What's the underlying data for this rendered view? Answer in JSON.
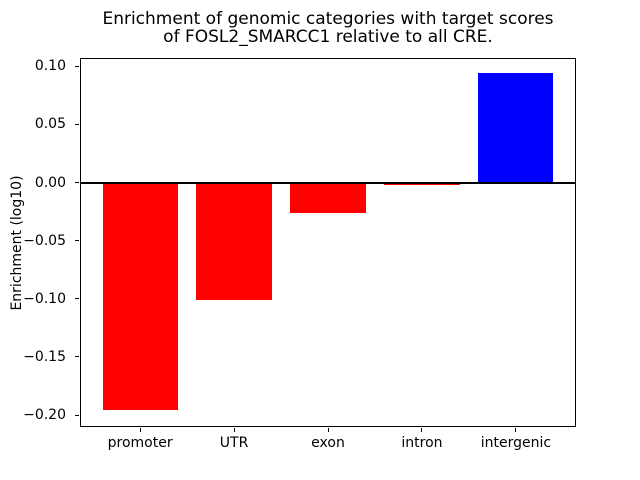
{
  "title": {
    "line1": "Enrichment of genomic categories with target scores",
    "line2": "of FOSL2_SMARCC1 relative to all CRE."
  },
  "chart_data": {
    "type": "bar",
    "title": "Enrichment of genomic categories with target scores\nof FOSL2_SMARCC1 relative to all CRE.",
    "title_lines": [
      "Enrichment of genomic categories with target scores",
      "of FOSL2_SMARCC1 relative to all CRE."
    ],
    "xlabel": "",
    "ylabel": "Enrichment (log10)",
    "categories": [
      "promoter",
      "UTR",
      "exon",
      "intron",
      "intergenic"
    ],
    "values": [
      -0.196,
      -0.101,
      -0.026,
      -0.002,
      0.094
    ],
    "bar_width": 0.8,
    "xlim": [
      -0.64,
      4.64
    ],
    "ylim": [
      -0.2103,
      0.1072
    ],
    "yticks": [
      0.1,
      0.05,
      0.0,
      -0.05,
      -0.1,
      -0.15,
      -0.2
    ],
    "ytick_labels": [
      "0.10",
      "0.05",
      "0.00",
      "−0.05",
      "−0.10",
      "−0.15",
      "−0.20"
    ],
    "grid": false,
    "legend": null,
    "colors": {
      "positive": "#0000ff",
      "negative": "#ff0000",
      "zero_line": "#000000",
      "spine": "#000000",
      "background": "#ffffff"
    }
  }
}
